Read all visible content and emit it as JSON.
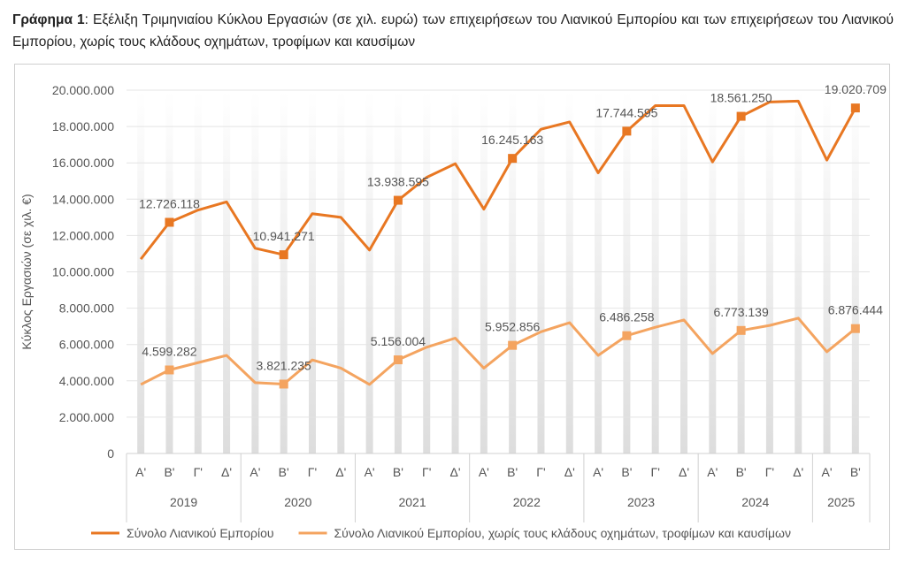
{
  "caption": {
    "lead": "Γράφημα 1",
    "text": ": Εξέλιξη Τριμηνιαίου Κύκλου Εργασιών (σε χιλ. ευρώ) των επιχειρήσεων του Λιανικού Εμπορίου και των επιχειρήσεων του Λιανικού Εμπορίου, χωρίς τους κλάδους οχημάτων, τροφίμων και καυσίμων"
  },
  "chart_data": {
    "type": "line",
    "ylabel": "Κύκλος Εργασιών (σε χιλ. €)",
    "ylim": [
      0,
      20000000
    ],
    "yticks": [
      "0",
      "2.000.000",
      "4.000.000",
      "6.000.000",
      "8.000.000",
      "10.000.000",
      "12.000.000",
      "14.000.000",
      "16.000.000",
      "18.000.000",
      "20.000.000"
    ],
    "quarters": [
      "Α'",
      "Β'",
      "Γ'",
      "Δ'",
      "Α'",
      "Β'",
      "Γ'",
      "Δ'",
      "Α'",
      "Β'",
      "Γ'",
      "Δ'",
      "Α'",
      "Β'",
      "Γ'",
      "Δ'",
      "Α'",
      "Β'",
      "Γ'",
      "Δ'",
      "Α'",
      "Β'",
      "Γ'",
      "Δ'",
      "Α'",
      "Β'"
    ],
    "years": [
      "2019",
      "2020",
      "2021",
      "2022",
      "2023",
      "2024",
      "2025"
    ],
    "grid": true,
    "legend_position": "bottom",
    "series": [
      {
        "name": "Σύνολο Λιανικού Εμπορίου",
        "color": "#E87722",
        "values": [
          10700000,
          12726118,
          13400000,
          13850000,
          11300000,
          10941271,
          13200000,
          13000000,
          11200000,
          13938595,
          15200000,
          15950000,
          13450000,
          16245163,
          17850000,
          18250000,
          15450000,
          17744595,
          19150000,
          19150000,
          16050000,
          18561250,
          19350000,
          19400000,
          16150000,
          19020709
        ],
        "labels": [
          "12.726.118",
          "10.941.271",
          "13.938.595",
          "16.245.163",
          "17.744.595",
          "18.561.250",
          "19.020.709"
        ]
      },
      {
        "name": "Σύνολο Λιανικού Εμπορίου, χωρίς τους κλάδους οχημάτων, τροφίμων και καυσίμων",
        "color": "#F4A460",
        "values": [
          3800000,
          4599282,
          5000000,
          5400000,
          3900000,
          3821235,
          5150000,
          4700000,
          3800000,
          5156004,
          5850000,
          6350000,
          4700000,
          5952856,
          6700000,
          7200000,
          5400000,
          6486258,
          6950000,
          7350000,
          5500000,
          6773139,
          7050000,
          7450000,
          5600000,
          6876444
        ],
        "labels": [
          "4.599.282",
          "3.821.235",
          "5.156.004",
          "5.952.856",
          "6.486.258",
          "6.773.139",
          "6.876.444"
        ]
      }
    ]
  }
}
